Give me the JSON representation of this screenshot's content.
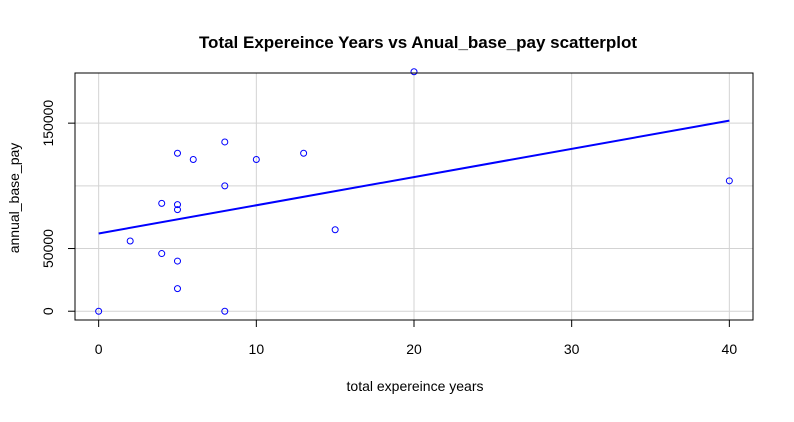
{
  "chart_data": {
    "type": "scatter",
    "title": "Total Expereince Years vs Anual_base_pay scatterplot",
    "xlabel": "total expereince years",
    "ylabel": "annual_base_pay",
    "xlim": [
      -1.5,
      41.5
    ],
    "ylim": [
      -7000,
      190000
    ],
    "x_ticks": [
      0,
      10,
      20,
      30,
      40
    ],
    "x_tick_labels": [
      "0",
      "10",
      "20",
      "30",
      "40"
    ],
    "y_ticks": [
      0,
      50000,
      150000
    ],
    "y_tick_labels": [
      "0",
      "50000",
      "150000"
    ],
    "grid": true,
    "grid_x": [
      0,
      10,
      20,
      30,
      40
    ],
    "grid_y": [
      0,
      50000,
      100000,
      150000
    ],
    "point_color": "#0000ff",
    "line_color": "#0000ff",
    "points": [
      {
        "x": 0,
        "y": 0
      },
      {
        "x": 2,
        "y": 56000
      },
      {
        "x": 4,
        "y": 86000
      },
      {
        "x": 4,
        "y": 46000
      },
      {
        "x": 5,
        "y": 126000
      },
      {
        "x": 5,
        "y": 85000
      },
      {
        "x": 5,
        "y": 81000
      },
      {
        "x": 5,
        "y": 40000
      },
      {
        "x": 5,
        "y": 18000
      },
      {
        "x": 6,
        "y": 121000
      },
      {
        "x": 8,
        "y": 135000
      },
      {
        "x": 8,
        "y": 100000
      },
      {
        "x": 8,
        "y": 0
      },
      {
        "x": 10,
        "y": 121000
      },
      {
        "x": 13,
        "y": 126000
      },
      {
        "x": 15,
        "y": 65000
      },
      {
        "x": 20,
        "y": 191000
      },
      {
        "x": 40,
        "y": 104000
      }
    ],
    "regression_line": {
      "x": [
        0,
        40
      ],
      "y": [
        62000,
        152000
      ]
    }
  }
}
